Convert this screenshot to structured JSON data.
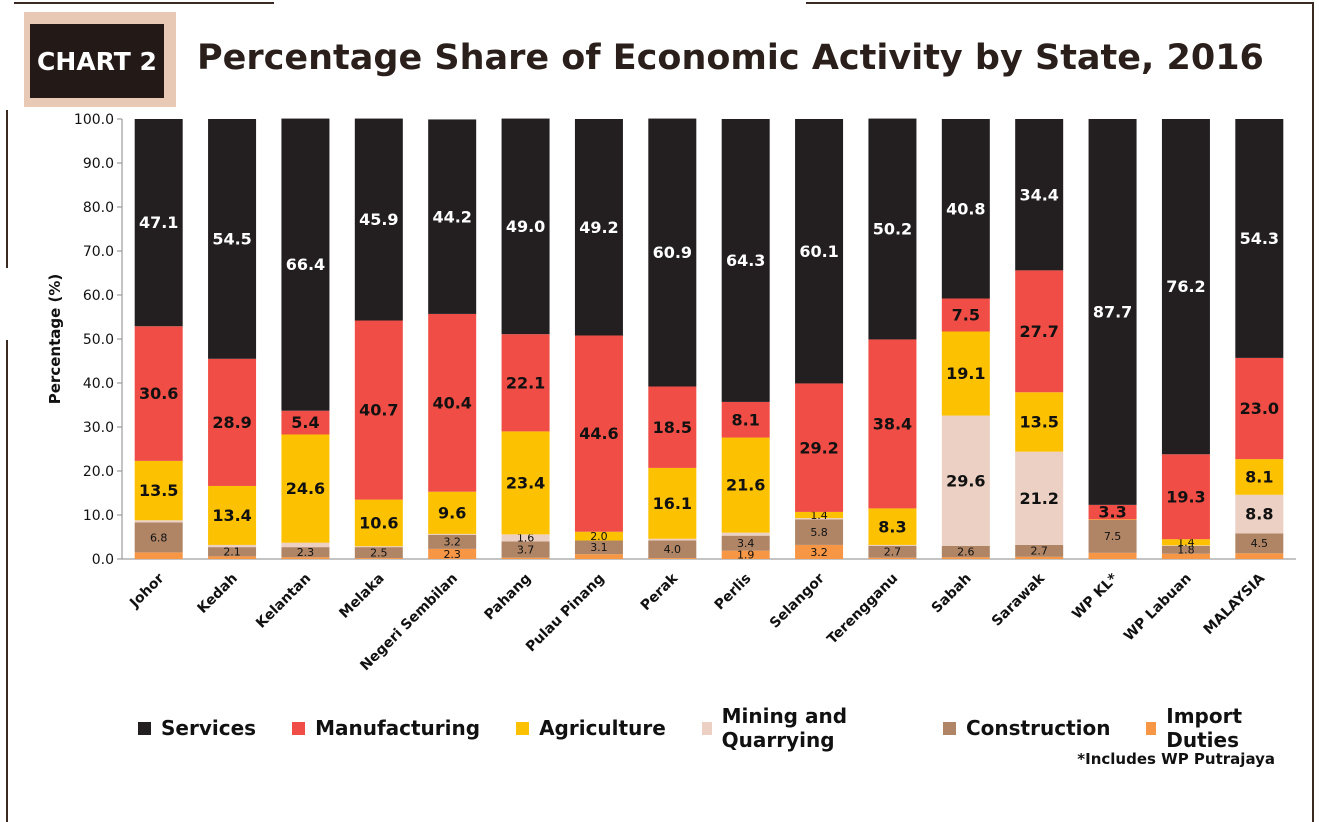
{
  "header": {
    "badge": "CHART 2",
    "title": "Percentage Share of Economic Activity by State, 2016"
  },
  "footnote": "*Includes WP Putrajaya",
  "colors": {
    "Services": "#231f20",
    "Manufacturing": "#ef4d45",
    "Agriculture": "#fcc100",
    "Mining and Quarrying": "#ebd0c3",
    "Construction": "#b08566",
    "Import Duties": "#f79645"
  },
  "chart_data": {
    "type": "bar",
    "stacked": true,
    "title": "Percentage Share of Economic Activity by State, 2016",
    "xlabel": "",
    "ylabel": "Percentage (%)",
    "ylim": [
      0,
      100
    ],
    "yticks": [
      "0.0",
      "10.0",
      "20.0",
      "30.0",
      "40.0",
      "50.0",
      "60.0",
      "70.0",
      "80.0",
      "90.0",
      "100.0"
    ],
    "grid": false,
    "legend_position": "bottom",
    "categories": [
      "Johor",
      "Kedah",
      "Kelantan",
      "Melaka",
      "Negeri Sembilan",
      "Pahang",
      "Pulau Pinang",
      "Perak",
      "Perlis",
      "Selangor",
      "Terengganu",
      "Sabah",
      "Sarawak",
      "WP KL*",
      "WP Labuan",
      "MALAYSIA"
    ],
    "series": [
      {
        "name": "Import Duties",
        "values": [
          1.5,
          0.6,
          0.4,
          0.2,
          2.3,
          0.3,
          1.1,
          0.2,
          1.9,
          3.2,
          0.3,
          0.4,
          0.5,
          1.4,
          1.2,
          1.3
        ]
      },
      {
        "name": "Construction",
        "values": [
          6.8,
          2.1,
          2.3,
          2.5,
          3.2,
          3.7,
          3.1,
          4.0,
          3.4,
          5.8,
          2.7,
          2.6,
          2.7,
          7.5,
          1.8,
          4.5
        ]
      },
      {
        "name": "Mining and Quarrying",
        "values": [
          0.5,
          0.5,
          1.0,
          0.2,
          0.2,
          1.6,
          0.0,
          0.4,
          0.7,
          0.3,
          0.2,
          29.6,
          21.2,
          0.0,
          0.1,
          8.8
        ]
      },
      {
        "name": "Agriculture",
        "values": [
          13.5,
          13.4,
          24.6,
          10.6,
          9.6,
          23.4,
          2.0,
          16.1,
          21.6,
          1.4,
          8.3,
          19.1,
          13.5,
          0.1,
          1.4,
          8.1
        ]
      },
      {
        "name": "Manufacturing",
        "values": [
          30.6,
          28.9,
          5.4,
          40.7,
          40.4,
          22.1,
          44.6,
          18.5,
          8.1,
          29.2,
          38.4,
          7.5,
          27.7,
          3.3,
          19.3,
          23.0
        ]
      },
      {
        "name": "Services",
        "values": [
          47.1,
          54.5,
          66.4,
          45.9,
          44.2,
          49.0,
          49.2,
          60.9,
          64.3,
          60.1,
          50.2,
          40.8,
          34.4,
          87.7,
          76.2,
          54.3
        ]
      }
    ],
    "data_labels": {
      "Import Duties": [
        "",
        "",
        "",
        "",
        "2.3",
        "",
        "",
        "",
        "1.9",
        "3.2",
        "",
        "",
        "",
        "",
        "",
        ""
      ],
      "Construction": [
        "6.8",
        "2.1",
        "2.3",
        "2.5",
        "3.2",
        "3.7",
        "3.1",
        "4.0",
        "3.4",
        "5.8",
        "2.7",
        "2.6",
        "2.7",
        "7.5",
        "1.8",
        "4.5"
      ],
      "Mining and Quarrying": [
        "",
        "",
        "",
        "",
        "",
        "1.6",
        "",
        "",
        "",
        "",
        "",
        "29.6",
        "21.2",
        "",
        "",
        "8.8"
      ],
      "Agriculture": [
        "13.5",
        "13.4",
        "24.6",
        "10.6",
        "9.6",
        "23.4",
        "2.0",
        "16.1",
        "21.6",
        "1.4",
        "8.3",
        "19.1",
        "13.5",
        "",
        "1.4",
        "8.1"
      ],
      "Manufacturing": [
        "30.6",
        "28.9",
        "5.4",
        "40.7",
        "40.4",
        "22.1",
        "44.6",
        "18.5",
        "8.1",
        "29.2",
        "38.4",
        "7.5",
        "27.7",
        "3.3",
        "19.3",
        "23.0"
      ],
      "Services": [
        "47.1",
        "54.5",
        "66.4",
        "45.9",
        "44.2",
        "49.0",
        "49.2",
        "60.9",
        "64.3",
        "60.1",
        "50.2",
        "40.8",
        "34.4",
        "87.7",
        "76.2",
        "54.3"
      ]
    },
    "legend_order": [
      "Services",
      "Manufacturing",
      "Agriculture",
      "Mining and Quarrying",
      "Construction",
      "Import Duties"
    ]
  }
}
